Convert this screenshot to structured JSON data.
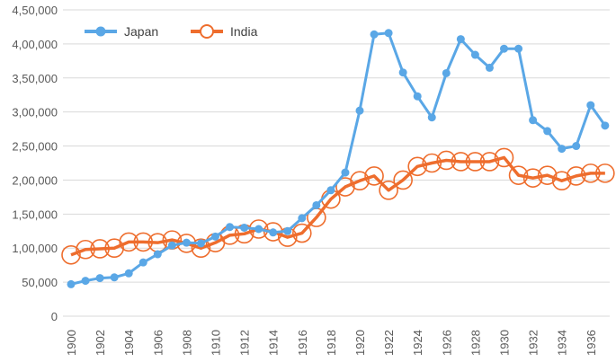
{
  "chart_data": {
    "type": "line",
    "title": "",
    "xlabel": "",
    "ylabel": "",
    "ylim": [
      0,
      450000
    ],
    "yticks": [
      0,
      50000,
      100000,
      150000,
      200000,
      250000,
      300000,
      350000,
      400000,
      450000
    ],
    "ytick_labels": [
      "0",
      "50,000",
      "1,00,000",
      "1,50,000",
      "2,00,000",
      "2,50,000",
      "3,00,000",
      "3,50,000",
      "4,00,000",
      "4,50,000"
    ],
    "x": [
      1900,
      1901,
      1902,
      1903,
      1904,
      1905,
      1906,
      1907,
      1908,
      1909,
      1910,
      1911,
      1912,
      1913,
      1914,
      1915,
      1916,
      1917,
      1918,
      1919,
      1920,
      1921,
      1922,
      1923,
      1924,
      1925,
      1926,
      1927,
      1928,
      1929,
      1930,
      1931,
      1932,
      1933,
      1934,
      1935,
      1936,
      1937
    ],
    "xtick_labels": [
      "1900",
      "1902",
      "1904",
      "1906",
      "1908",
      "1910",
      "1912",
      "1914",
      "1916",
      "1918",
      "1920",
      "1922",
      "1924",
      "1926",
      "1928",
      "1930",
      "1932",
      "1934",
      "1936"
    ],
    "grid": "horizontal",
    "legend_position": "top-left",
    "series": [
      {
        "name": "Japan",
        "color": "#5aa7e6",
        "marker": "filled-circle",
        "values": [
          47000,
          52000,
          56000,
          57000,
          63000,
          79000,
          91000,
          104000,
          108000,
          107000,
          117000,
          131000,
          130000,
          128000,
          123000,
          125000,
          144000,
          163000,
          185000,
          211000,
          302000,
          414000,
          416000,
          358000,
          323000,
          292000,
          357000,
          407000,
          384000,
          365000,
          393000,
          393000,
          288000,
          272000,
          246000,
          250000,
          310000,
          280000
        ]
      },
      {
        "name": "India",
        "color": "#ee6d2d",
        "marker": "hollow-circle",
        "values": [
          90000,
          98000,
          99000,
          100000,
          109000,
          109000,
          108000,
          112000,
          107000,
          100000,
          108000,
          119000,
          121000,
          128000,
          124000,
          116000,
          122000,
          145000,
          172000,
          190000,
          199000,
          206000,
          185000,
          200000,
          220000,
          225000,
          229000,
          227000,
          227000,
          227000,
          233000,
          207000,
          203000,
          207000,
          199000,
          206000,
          210000,
          210000
        ]
      }
    ]
  }
}
